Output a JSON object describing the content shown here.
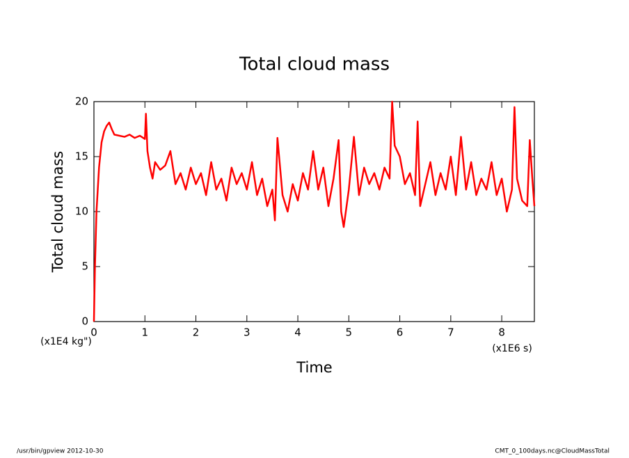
{
  "chart_data": {
    "type": "line",
    "title": "Total cloud mass",
    "y_label": "Total cloud mass",
    "x_label": "Time",
    "y_unit": "(x1E4 kg\")",
    "x_unit": "(x1E6 s)",
    "footer_left": "/usr/bin/gpview  2012-10-30",
    "footer_right": "CMT_0_100days.nc@CloudMassTotal",
    "x": [
      0,
      0.02,
      0.05,
      0.1,
      0.15,
      0.2,
      0.25,
      0.3,
      0.35,
      0.4,
      0.5,
      0.6,
      0.7,
      0.8,
      0.9,
      1.0,
      1.02,
      1.05,
      1.1,
      1.15,
      1.2,
      1.3,
      1.4,
      1.5,
      1.6,
      1.7,
      1.8,
      1.9,
      2.0,
      2.1,
      2.2,
      2.3,
      2.4,
      2.5,
      2.6,
      2.7,
      2.8,
      2.9,
      3.0,
      3.1,
      3.2,
      3.3,
      3.4,
      3.5,
      3.55,
      3.6,
      3.7,
      3.8,
      3.9,
      4.0,
      4.1,
      4.2,
      4.3,
      4.4,
      4.5,
      4.6,
      4.7,
      4.8,
      4.85,
      4.9,
      5.0,
      5.1,
      5.2,
      5.3,
      5.4,
      5.5,
      5.6,
      5.7,
      5.8,
      5.85,
      5.9,
      6.0,
      6.1,
      6.2,
      6.3,
      6.35,
      6.4,
      6.5,
      6.6,
      6.7,
      6.8,
      6.9,
      7.0,
      7.1,
      7.2,
      7.3,
      7.4,
      7.5,
      7.6,
      7.7,
      7.8,
      7.9,
      8.0,
      8.1,
      8.2,
      8.25,
      8.3,
      8.4,
      8.5,
      8.55,
      8.6,
      8.64
    ],
    "series": [
      {
        "name": "Total cloud mass",
        "color": "#ff0000",
        "values": [
          0,
          5,
          10,
          14,
          16.3,
          17.3,
          17.8,
          18.1,
          17.5,
          17.0,
          16.9,
          16.8,
          17.0,
          16.7,
          16.9,
          16.6,
          18.9,
          15.5,
          14.0,
          13.0,
          14.5,
          13.8,
          14.2,
          15.5,
          12.5,
          13.5,
          12.0,
          14.0,
          12.5,
          13.5,
          11.5,
          14.5,
          12.0,
          13.0,
          11.0,
          14.0,
          12.5,
          13.5,
          12.0,
          14.5,
          11.5,
          13.0,
          10.5,
          12.0,
          9.2,
          16.7,
          11.5,
          10.0,
          12.5,
          11.0,
          13.5,
          12.0,
          15.5,
          12.0,
          14.0,
          10.5,
          13.0,
          16.5,
          10.0,
          8.6,
          12.0,
          16.8,
          11.5,
          14.0,
          12.5,
          13.5,
          12.0,
          14.0,
          13.0,
          20.0,
          16.0,
          15.0,
          12.5,
          13.5,
          11.5,
          18.2,
          10.5,
          12.5,
          14.5,
          11.5,
          13.5,
          12.0,
          15.0,
          11.5,
          16.8,
          12.0,
          14.5,
          11.5,
          13.0,
          12.0,
          14.5,
          11.5,
          13.0,
          10.0,
          12.0,
          19.5,
          13.0,
          11.0,
          10.5,
          16.5,
          13.0,
          10.5
        ]
      }
    ],
    "xlim": [
      0,
      8.64
    ],
    "ylim": [
      0,
      20
    ],
    "xticks": [
      0,
      1,
      2,
      3,
      4,
      5,
      6,
      7,
      8
    ],
    "yticks": [
      0,
      5,
      10,
      15,
      20
    ]
  }
}
